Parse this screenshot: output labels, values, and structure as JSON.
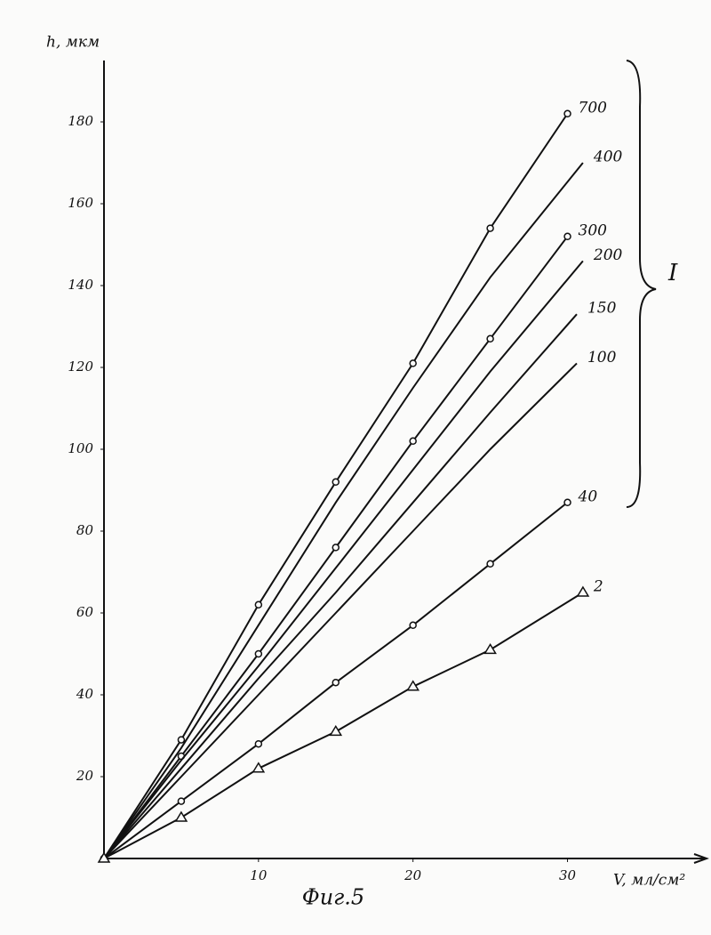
{
  "chart_data": {
    "type": "line",
    "title": "Фиг.5",
    "y_label": "h, мкм",
    "x_label": "V, мл/см²",
    "group_label": "I",
    "xlim": [
      0,
      39
    ],
    "ylim": [
      0,
      195
    ],
    "xticks": [
      10,
      20,
      30
    ],
    "yticks": [
      20,
      40,
      60,
      80,
      100,
      120,
      140,
      160,
      180
    ],
    "series": [
      {
        "name": "700",
        "color": "#111111",
        "marker": "circle",
        "x": [
          0,
          5,
          10,
          15,
          20,
          25,
          30
        ],
        "values": [
          0,
          29,
          62,
          92,
          121,
          154,
          182
        ]
      },
      {
        "name": "400",
        "color": "#111111",
        "marker": "none",
        "x": [
          0,
          5,
          10,
          15,
          20,
          25,
          31
        ],
        "values": [
          0,
          27,
          57,
          87,
          115,
          142,
          170
        ]
      },
      {
        "name": "300",
        "color": "#111111",
        "marker": "circle",
        "x": [
          0,
          5,
          10,
          15,
          20,
          25,
          30
        ],
        "values": [
          0,
          25,
          50,
          76,
          102,
          127,
          152
        ]
      },
      {
        "name": "200",
        "color": "#111111",
        "marker": "none",
        "x": [
          0,
          5,
          10,
          15,
          20,
          25,
          31
        ],
        "values": [
          0,
          24,
          47,
          71,
          95,
          119,
          146
        ]
      },
      {
        "name": "150",
        "color": "#111111",
        "marker": "none",
        "x": [
          0,
          5,
          10,
          15,
          20,
          25,
          30.6
        ],
        "values": [
          0,
          22,
          44,
          65,
          87,
          109,
          133
        ]
      },
      {
        "name": "100",
        "color": "#111111",
        "marker": "none",
        "x": [
          0,
          5,
          10,
          15,
          20,
          25,
          30.6
        ],
        "values": [
          0,
          20,
          40,
          60,
          80,
          100,
          121
        ]
      },
      {
        "name": "40",
        "color": "#111111",
        "marker": "circle",
        "x": [
          0,
          5,
          10,
          15,
          20,
          25,
          30
        ],
        "values": [
          0,
          14,
          28,
          43,
          57,
          72,
          87
        ]
      },
      {
        "name": "2",
        "color": "#111111",
        "marker": "triangle",
        "x": [
          0,
          5,
          10,
          15,
          20,
          25,
          31
        ],
        "values": [
          0,
          10,
          22,
          31,
          42,
          51,
          65
        ]
      }
    ]
  }
}
